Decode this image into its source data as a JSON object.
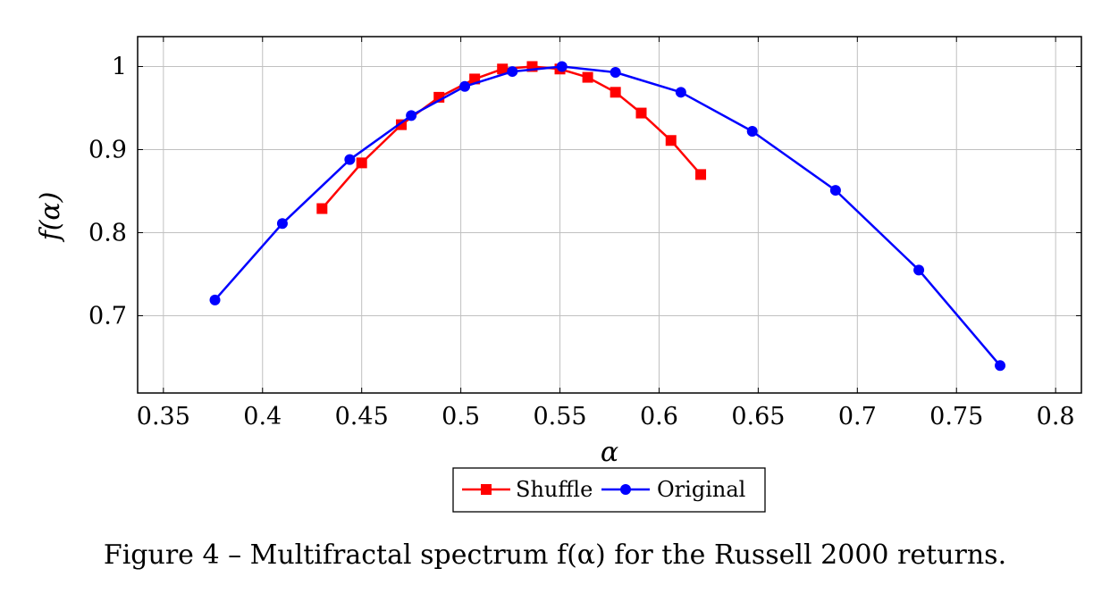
{
  "chart_data": {
    "type": "line",
    "xlabel": "α",
    "ylabel": "f(α)",
    "xlim": [
      0.337,
      0.813
    ],
    "ylim": [
      0.607,
      1.036
    ],
    "xticks": [
      0.35,
      0.4,
      0.45,
      0.5,
      0.55,
      0.6,
      0.65,
      0.7,
      0.75,
      0.8
    ],
    "xtick_labels": [
      "0.35",
      "0.4",
      "0.45",
      "0.5",
      "0.55",
      "0.6",
      "0.65",
      "0.7",
      "0.75",
      "0.8"
    ],
    "yticks": [
      0.7,
      0.8,
      0.9,
      1.0
    ],
    "ytick_labels": [
      "0.7",
      "0.8",
      "0.9",
      "1"
    ],
    "grid": true,
    "legend_position": "below",
    "series": [
      {
        "name": "Shuffle",
        "color": "#ff0000",
        "marker": "square",
        "x": [
          0.43,
          0.45,
          0.47,
          0.489,
          0.507,
          0.521,
          0.536,
          0.55,
          0.564,
          0.578,
          0.591,
          0.606,
          0.621
        ],
        "y": [
          0.829,
          0.884,
          0.93,
          0.963,
          0.985,
          0.997,
          1.0,
          0.997,
          0.987,
          0.969,
          0.944,
          0.911,
          0.87
        ]
      },
      {
        "name": "Original",
        "color": "#0000ff",
        "marker": "circle",
        "x": [
          0.376,
          0.41,
          0.444,
          0.475,
          0.502,
          0.526,
          0.551,
          0.578,
          0.611,
          0.647,
          0.689,
          0.731,
          0.772
        ],
        "y": [
          0.719,
          0.811,
          0.888,
          0.941,
          0.976,
          0.994,
          1.0,
          0.993,
          0.969,
          0.922,
          0.851,
          0.755,
          0.64
        ]
      }
    ]
  },
  "caption": "Figure 4 – Multifractal spectrum f(α) for the Russell 2000 returns."
}
